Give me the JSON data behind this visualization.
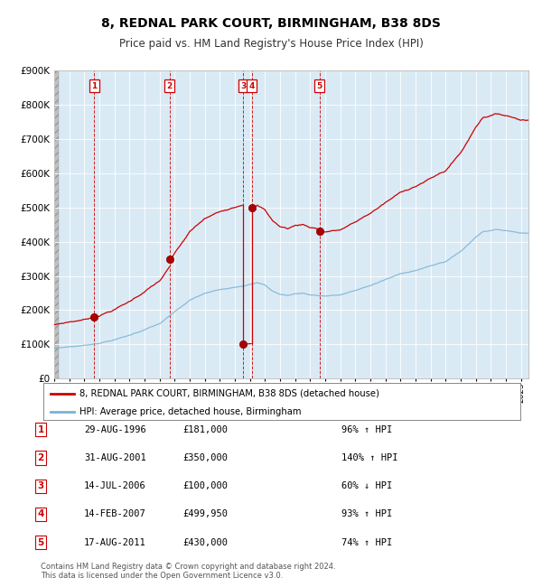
{
  "title": "8, REDNAL PARK COURT, BIRMINGHAM, B38 8DS",
  "subtitle": "Price paid vs. HM Land Registry's House Price Index (HPI)",
  "hpi_color": "#7ab3d4",
  "price_color": "#cc0000",
  "sale_marker_color": "#aa0000",
  "plot_bg": "#daeaf5",
  "ylim": [
    0,
    900000
  ],
  "yticks": [
    0,
    100000,
    200000,
    300000,
    400000,
    500000,
    600000,
    700000,
    800000,
    900000
  ],
  "ytick_labels": [
    "£0",
    "£100K",
    "£200K",
    "£300K",
    "£400K",
    "£500K",
    "£600K",
    "£700K",
    "£800K",
    "£900K"
  ],
  "legend_price_label": "8, REDNAL PARK COURT, BIRMINGHAM, B38 8DS (detached house)",
  "legend_hpi_label": "HPI: Average price, detached house, Birmingham",
  "footer": "Contains HM Land Registry data © Crown copyright and database right 2024.\nThis data is licensed under the Open Government Licence v3.0.",
  "sales": [
    {
      "num": 1,
      "t": 1996.667,
      "price": 181000
    },
    {
      "num": 2,
      "t": 2001.667,
      "price": 350000
    },
    {
      "num": 3,
      "t": 2006.542,
      "price": 100000
    },
    {
      "num": 4,
      "t": 2007.125,
      "price": 499950
    },
    {
      "num": 5,
      "t": 2011.625,
      "price": 430000
    }
  ],
  "table_rows": [
    {
      "num": 1,
      "date": "29-AUG-1996",
      "price": "£181,000",
      "hpi_pct": "96% ↑ HPI"
    },
    {
      "num": 2,
      "date": "31-AUG-2001",
      "price": "£350,000",
      "hpi_pct": "140% ↑ HPI"
    },
    {
      "num": 3,
      "date": "14-JUL-2006",
      "price": "£100,000",
      "hpi_pct": "60% ↓ HPI"
    },
    {
      "num": 4,
      "date": "14-FEB-2007",
      "price": "£499,950",
      "hpi_pct": "93% ↑ HPI"
    },
    {
      "num": 5,
      "date": "17-AUG-2011",
      "price": "£430,000",
      "hpi_pct": "74% ↑ HPI"
    }
  ],
  "hpi_points": [
    [
      1994.0,
      88000
    ],
    [
      1995.0,
      93000
    ],
    [
      1996.0,
      97000
    ],
    [
      1997.0,
      105000
    ],
    [
      1998.0,
      115000
    ],
    [
      1999.0,
      128000
    ],
    [
      2000.0,
      145000
    ],
    [
      2001.0,
      162000
    ],
    [
      2002.0,
      195000
    ],
    [
      2003.0,
      228000
    ],
    [
      2004.0,
      248000
    ],
    [
      2005.0,
      258000
    ],
    [
      2006.0,
      268000
    ],
    [
      2007.0,
      278000
    ],
    [
      2007.5,
      282000
    ],
    [
      2008.0,
      275000
    ],
    [
      2008.5,
      258000
    ],
    [
      2009.0,
      248000
    ],
    [
      2009.5,
      245000
    ],
    [
      2010.0,
      250000
    ],
    [
      2010.5,
      252000
    ],
    [
      2011.0,
      248000
    ],
    [
      2011.5,
      246000
    ],
    [
      2012.0,
      245000
    ],
    [
      2013.0,
      248000
    ],
    [
      2014.0,
      260000
    ],
    [
      2015.0,
      275000
    ],
    [
      2016.0,
      292000
    ],
    [
      2017.0,
      308000
    ],
    [
      2018.0,
      320000
    ],
    [
      2019.0,
      332000
    ],
    [
      2020.0,
      345000
    ],
    [
      2021.0,
      375000
    ],
    [
      2021.5,
      395000
    ],
    [
      2022.0,
      418000
    ],
    [
      2022.5,
      435000
    ],
    [
      2023.0,
      438000
    ],
    [
      2023.5,
      440000
    ],
    [
      2024.0,
      438000
    ],
    [
      2024.5,
      435000
    ],
    [
      2025.0,
      432000
    ]
  ]
}
